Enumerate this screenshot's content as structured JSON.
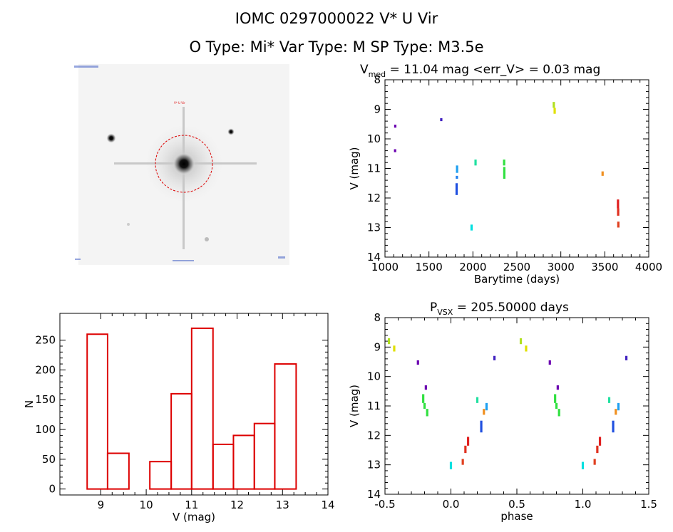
{
  "header": {
    "title_line1": "IOMC 0297000022    V* U Vir",
    "title_line2": "O Type: Mi*  Var Type: M   SP Type: M3.5e"
  },
  "image_panel": {
    "marker_label": "V* U Vir"
  },
  "colors": {
    "histogram_bar": "#dd0000",
    "circle": "#dd0000",
    "axes": "#000000"
  },
  "chart_data": [
    {
      "type": "scatter",
      "title": "V_med = 11.04 mag <err_V> = 0.03 mag",
      "title_parts": {
        "v": "V",
        "sub": "med",
        "rest": " = 11.04 mag <err_V> = 0.03 mag"
      },
      "xlabel": "Barytime (days)",
      "ylabel": "V (mag)",
      "xlim": [
        1000,
        4000
      ],
      "ylim": [
        14,
        8
      ],
      "y_inverted": true,
      "xticks": [
        1000,
        1500,
        2000,
        2500,
        3000,
        3500,
        4000
      ],
      "yticks": [
        8,
        9,
        10,
        11,
        12,
        13,
        14
      ],
      "segments": [
        {
          "x": 1115,
          "y": [
            10.35,
            10.45
          ],
          "color": "#6a00b0"
        },
        {
          "x": 1117,
          "y": [
            9.52,
            9.62
          ],
          "color": "#6a00b0"
        },
        {
          "x": 1640,
          "y": [
            9.3,
            9.4
          ],
          "color": "#4020c0"
        },
        {
          "x": 1815,
          "y": [
            11.5,
            11.9
          ],
          "color": "#2050e0"
        },
        {
          "x": 1818,
          "y": [
            11.25,
            11.35
          ],
          "color": "#2080f0"
        },
        {
          "x": 1820,
          "y": [
            10.9,
            11.15
          ],
          "color": "#20a0f0"
        },
        {
          "x": 1985,
          "y": [
            12.9,
            13.1
          ],
          "color": "#00e0e0"
        },
        {
          "x": 2030,
          "y": [
            10.7,
            10.9
          ],
          "color": "#20e0a0"
        },
        {
          "x": 2355,
          "y": [
            10.7,
            10.9
          ],
          "color": "#30e040"
        },
        {
          "x": 2357,
          "y": [
            10.95,
            11.35
          ],
          "color": "#30e040"
        },
        {
          "x": 2920,
          "y": [
            8.75,
            8.95
          ],
          "color": "#b0e020"
        },
        {
          "x": 2930,
          "y": [
            8.95,
            9.15
          ],
          "color": "#e0e000"
        },
        {
          "x": 3475,
          "y": [
            11.1,
            11.25
          ],
          "color": "#f09020"
        },
        {
          "x": 3650,
          "y": [
            12.05,
            12.35
          ],
          "color": "#e02020"
        },
        {
          "x": 3652,
          "y": [
            12.35,
            12.6
          ],
          "color": "#e03020"
        },
        {
          "x": 3654,
          "y": [
            12.8,
            13.0
          ],
          "color": "#e04020"
        }
      ]
    },
    {
      "type": "bar",
      "title": "",
      "xlabel": "V (mag)",
      "ylabel": "N",
      "xlim": [
        8.1,
        14.0
      ],
      "ylim": [
        -10,
        295
      ],
      "xticks": [
        9,
        10,
        11,
        12,
        13,
        14
      ],
      "yticks": [
        0,
        50,
        100,
        150,
        200,
        250
      ],
      "bin_edges": [
        8.7,
        9.15,
        9.62,
        10.08,
        10.55,
        11.0,
        11.47,
        11.92,
        12.38,
        12.83,
        13.3
      ],
      "values": [
        260,
        60,
        0,
        46,
        160,
        270,
        75,
        90,
        110,
        210
      ]
    },
    {
      "type": "scatter",
      "title": "P_VSX = 205.50000 days",
      "title_parts": {
        "p": "P",
        "sub": "VSX",
        "rest": " = 205.50000 days"
      },
      "xlabel": "phase",
      "ylabel": "V (mag)",
      "xlim": [
        -0.5,
        1.5
      ],
      "ylim": [
        14,
        8
      ],
      "y_inverted": true,
      "xticks": [
        -0.5,
        0.0,
        0.5,
        1.0,
        1.5
      ],
      "yticks": [
        8,
        9,
        10,
        11,
        12,
        13,
        14
      ],
      "period_days": 205.5,
      "phase_offset": 1.0,
      "segments": [
        {
          "x": -0.47,
          "y": [
            8.7,
            8.9
          ],
          "color": "#b0e020"
        },
        {
          "x": -0.43,
          "y": [
            8.95,
            9.15
          ],
          "color": "#e0e000"
        },
        {
          "x": -0.25,
          "y": [
            9.45,
            9.6
          ],
          "color": "#6a00b0"
        },
        {
          "x": -0.19,
          "y": [
            10.3,
            10.45
          ],
          "color": "#6a00b0"
        },
        {
          "x": -0.21,
          "y": [
            10.6,
            10.9
          ],
          "color": "#30e040"
        },
        {
          "x": -0.2,
          "y": [
            10.9,
            11.1
          ],
          "color": "#30e040"
        },
        {
          "x": -0.18,
          "y": [
            11.1,
            11.35
          ],
          "color": "#30e040"
        },
        {
          "x": 0.0,
          "y": [
            12.9,
            13.15
          ],
          "color": "#00e0e0"
        },
        {
          "x": 0.09,
          "y": [
            12.8,
            13.0
          ],
          "color": "#e04020"
        },
        {
          "x": 0.11,
          "y": [
            12.35,
            12.6
          ],
          "color": "#e03020"
        },
        {
          "x": 0.13,
          "y": [
            12.05,
            12.35
          ],
          "color": "#e02020"
        },
        {
          "x": 0.2,
          "y": [
            10.7,
            10.9
          ],
          "color": "#20e0a0"
        },
        {
          "x": 0.23,
          "y": [
            11.5,
            11.9
          ],
          "color": "#2050e0"
        },
        {
          "x": 0.25,
          "y": [
            11.1,
            11.3
          ],
          "color": "#f09020"
        },
        {
          "x": 0.27,
          "y": [
            10.9,
            11.15
          ],
          "color": "#20a0f0"
        },
        {
          "x": 0.33,
          "y": [
            9.3,
            9.45
          ],
          "color": "#4020c0"
        }
      ]
    }
  ]
}
